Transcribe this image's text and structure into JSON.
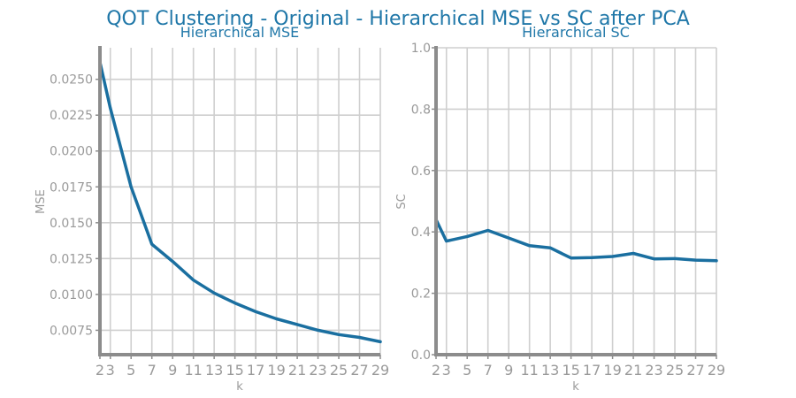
{
  "figure": {
    "title": "QOT Clustering - Original - Hierarchical MSE vs SC after PCA"
  },
  "colors": {
    "title": "#1f77a8",
    "series": "#1a6fa0",
    "grid": "#cfcfcf",
    "spine": "#8c8c8c",
    "tick_text": "#999999"
  },
  "chart_data": [
    {
      "type": "line",
      "title": "Hierarchical MSE",
      "xlabel": "k",
      "ylabel": "MSE",
      "grid": true,
      "x": [
        2,
        3,
        5,
        7,
        9,
        11,
        13,
        15,
        17,
        19,
        21,
        23,
        25,
        27,
        29
      ],
      "xticks": [
        2,
        3,
        5,
        7,
        9,
        11,
        13,
        15,
        17,
        19,
        21,
        23,
        25,
        27,
        29
      ],
      "xlim": [
        2,
        29
      ],
      "ylim": [
        0.0058,
        0.0272
      ],
      "yticks": [
        0.0075,
        0.01,
        0.0125,
        0.015,
        0.0175,
        0.02,
        0.0225,
        0.025
      ],
      "ytick_labels": [
        "0.0075",
        "0.0100",
        "0.0125",
        "0.0150",
        "0.0175",
        "0.0200",
        "0.0225",
        "0.0250"
      ],
      "series": [
        {
          "values": [
            0.0262,
            0.023,
            0.0175,
            0.0135,
            0.0123,
            0.011,
            0.0101,
            0.0094,
            0.0088,
            0.0083,
            0.0079,
            0.0075,
            0.0072,
            0.007,
            0.0067
          ]
        }
      ]
    },
    {
      "type": "line",
      "title": "Hierarchical SC",
      "xlabel": "k",
      "ylabel": "SC",
      "grid": true,
      "x": [
        2,
        3,
        5,
        7,
        9,
        11,
        13,
        15,
        17,
        19,
        21,
        23,
        25,
        27,
        29
      ],
      "xticks": [
        2,
        3,
        5,
        7,
        9,
        11,
        13,
        15,
        17,
        19,
        21,
        23,
        25,
        27,
        29
      ],
      "xlim": [
        2,
        29
      ],
      "ylim": [
        0.0,
        1.0
      ],
      "yticks": [
        0.0,
        0.2,
        0.4,
        0.6,
        0.8,
        1.0
      ],
      "ytick_labels": [
        "0.0",
        "0.2",
        "0.4",
        "0.6",
        "0.8",
        "1.0"
      ],
      "series": [
        {
          "values": [
            0.44,
            0.37,
            0.385,
            0.405,
            0.38,
            0.355,
            0.348,
            0.315,
            0.316,
            0.32,
            0.33,
            0.312,
            0.313,
            0.308,
            0.306
          ]
        }
      ]
    }
  ]
}
